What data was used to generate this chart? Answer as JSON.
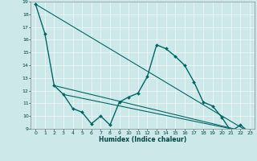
{
  "xlabel": "Humidex (Indice chaleur)",
  "bg_color": "#cce8e8",
  "line_color": "#006666",
  "grid_color": "#aacccc",
  "xlim": [
    -0.5,
    23.5
  ],
  "ylim": [
    9,
    19
  ],
  "yticks": [
    9,
    10,
    11,
    12,
    13,
    14,
    15,
    16,
    17,
    18,
    19
  ],
  "xticks": [
    0,
    1,
    2,
    3,
    4,
    5,
    6,
    7,
    8,
    9,
    10,
    11,
    12,
    13,
    14,
    15,
    16,
    17,
    18,
    19,
    20,
    21,
    22,
    23
  ],
  "series": [
    {
      "x": [
        0,
        1,
        2,
        3,
        4,
        5,
        6,
        7,
        8,
        9,
        10,
        11,
        12,
        13,
        14,
        15,
        16,
        17,
        18,
        19,
        20,
        21,
        22,
        23
      ],
      "y": [
        18.8,
        16.5,
        12.4,
        11.7,
        10.6,
        10.3,
        9.4,
        10.0,
        9.3,
        11.1,
        11.5,
        11.8,
        13.1,
        15.6,
        15.3,
        14.7,
        14.0,
        12.7,
        11.1,
        10.8,
        9.9,
        8.8,
        9.3,
        8.7
      ],
      "marker": "D",
      "markersize": 2.0,
      "linewidth": 1.0
    },
    {
      "x": [
        0,
        23
      ],
      "y": [
        18.8,
        8.7
      ],
      "marker": null,
      "markersize": 0,
      "linewidth": 0.8
    },
    {
      "x": [
        2,
        23
      ],
      "y": [
        12.4,
        8.7
      ],
      "marker": null,
      "markersize": 0,
      "linewidth": 0.8
    },
    {
      "x": [
        3,
        23
      ],
      "y": [
        11.7,
        8.7
      ],
      "marker": null,
      "markersize": 0,
      "linewidth": 0.8
    }
  ]
}
